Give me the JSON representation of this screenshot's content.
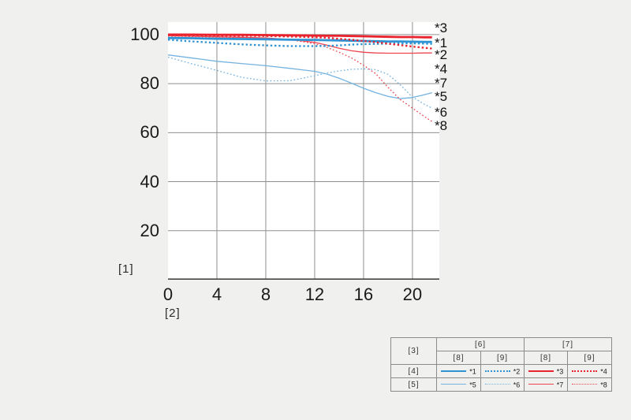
{
  "page": {
    "background": "#f0f0ef"
  },
  "chart_data": {
    "type": "line",
    "title": "",
    "xlabel": "[2]",
    "ylabel": "[1]",
    "x_ticks": [
      0,
      4,
      8,
      12,
      16,
      20
    ],
    "y_ticks": [
      100,
      80,
      60,
      40,
      20
    ],
    "xlim": [
      0,
      22.2
    ],
    "ylim": [
      0,
      105
    ],
    "grid": true,
    "grid_color": "#8f8f8f",
    "axis_color": "#474747",
    "x": [
      0,
      2,
      4,
      6,
      8,
      10,
      12,
      13,
      14,
      15,
      16,
      17,
      18,
      19,
      20,
      21,
      21.6
    ],
    "series": [
      {
        "name": "*1",
        "color": "#2f93d3",
        "style": "solid",
        "weight": "thick",
        "values": [
          98.6,
          98.5,
          98.3,
          98.2,
          98.1,
          97.9,
          97.8,
          97.7,
          97.6,
          97.5,
          97.4,
          97.3,
          97.2,
          97.2,
          97.1,
          97.0,
          97.0
        ]
      },
      {
        "name": "*2",
        "color": "#2f93d3",
        "style": "dotted",
        "weight": "thick",
        "values": [
          97.9,
          97.2,
          96.6,
          96.0,
          95.6,
          95.3,
          95.3,
          95.4,
          95.6,
          95.9,
          96.1,
          96.2,
          96.3,
          96.4,
          96.4,
          96.3,
          96.2
        ]
      },
      {
        "name": "*3",
        "color": "#e8232d",
        "style": "solid",
        "weight": "thick",
        "values": [
          100,
          100,
          99.9,
          99.9,
          99.8,
          99.7,
          99.6,
          99.5,
          99.5,
          99.4,
          99.3,
          99.2,
          99.1,
          99.0,
          99.0,
          98.9,
          98.9
        ]
      },
      {
        "name": "*4",
        "color": "#e8232d",
        "style": "dotted",
        "weight": "thick",
        "values": [
          99.8,
          99.7,
          99.6,
          99.5,
          99.4,
          99.2,
          98.9,
          98.7,
          98.3,
          97.9,
          97.4,
          96.9,
          96.3,
          95.7,
          95.1,
          94.6,
          94.3
        ]
      },
      {
        "name": "*5",
        "color": "#74b3e0",
        "style": "solid",
        "weight": "thin",
        "values": [
          91.7,
          90.4,
          89.1,
          88.2,
          87.3,
          86.2,
          85.0,
          83.9,
          82.2,
          80.2,
          78.1,
          76.3,
          74.8,
          73.9,
          74.3,
          75.5,
          76.3
        ]
      },
      {
        "name": "*6",
        "color": "#74b3e0",
        "style": "dotted",
        "weight": "thin",
        "values": [
          90.8,
          88.0,
          85.4,
          82.6,
          81.1,
          81.2,
          83.2,
          84.3,
          85.2,
          85.8,
          86.0,
          85.7,
          83.8,
          79.5,
          74.5,
          71.5,
          70.0
        ]
      },
      {
        "name": "*7",
        "color": "#ed4450",
        "style": "solid",
        "weight": "thin",
        "values": [
          99.5,
          99.3,
          99.1,
          98.9,
          98.6,
          98.0,
          96.8,
          95.7,
          94.4,
          93.4,
          92.8,
          92.5,
          92.4,
          92.4,
          92.4,
          92.5,
          92.5
        ]
      },
      {
        "name": "*8",
        "color": "#ed4450",
        "style": "dotted",
        "weight": "thin",
        "values": [
          99.4,
          99.2,
          99.0,
          98.8,
          98.5,
          97.9,
          96.3,
          94.8,
          92.8,
          90.5,
          87.5,
          84.0,
          78.5,
          73.5,
          70.0,
          66.5,
          64.5
        ]
      }
    ],
    "right_labels": [
      "*3",
      "*1",
      "*2",
      "*4",
      "*7",
      "*5",
      "*6",
      "*8"
    ],
    "legend_position": "bottom-right"
  },
  "legend_table": {
    "corner_label": "[3]",
    "group_headers": [
      "[6]",
      "[7]"
    ],
    "sub_headers": [
      "[8]",
      "[9]",
      "[8]",
      "[9]"
    ],
    "rows": [
      {
        "label": "[4]",
        "entries": [
          {
            "name": "*1"
          },
          {
            "name": "*2"
          },
          {
            "name": "*3"
          },
          {
            "name": "*4"
          }
        ]
      },
      {
        "label": "[5]",
        "entries": [
          {
            "name": "*5"
          },
          {
            "name": "*6"
          },
          {
            "name": "*7"
          },
          {
            "name": "*8"
          }
        ]
      }
    ]
  }
}
